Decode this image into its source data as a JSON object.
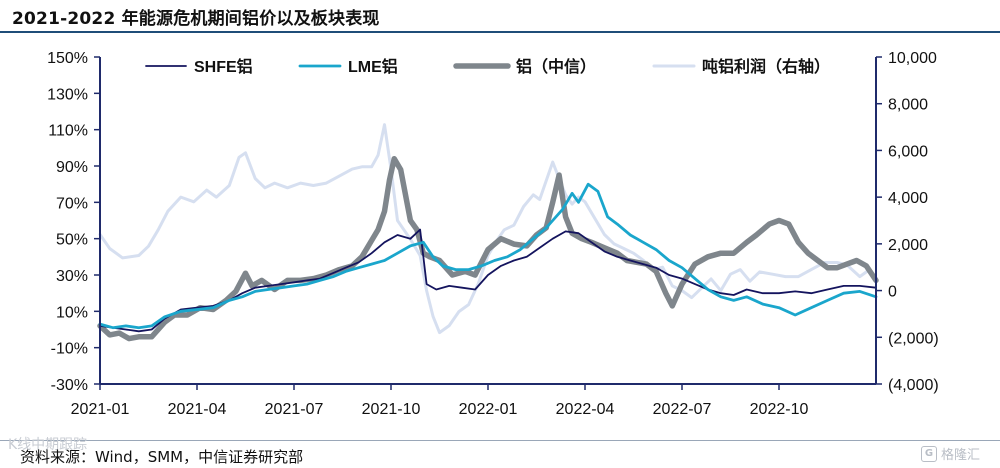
{
  "header": {
    "title": "2021-2022 年能源危机期间铝价以及板块表现"
  },
  "footer": {
    "source": "资料来源：Wind，SMM，中信证券研究部",
    "watermark_left": "K线中期跟踪",
    "watermark_right": "格隆汇",
    "watermark_icon": "G"
  },
  "chart_data": {
    "type": "line",
    "title": "2021-2022 年能源危机期间铝价以及板块表现",
    "xlabel": "",
    "ylabel": "",
    "x_tick_labels": [
      "2021-01",
      "2021-04",
      "2021-07",
      "2021-10",
      "2022-01",
      "2022-04",
      "2022-07",
      "2022-10"
    ],
    "y_left": {
      "lim": [
        -30,
        150
      ],
      "ticks": [
        -30,
        -10,
        10,
        30,
        50,
        70,
        90,
        110,
        130,
        150
      ],
      "tick_labels": [
        "-30%",
        "-10%",
        "10%",
        "30%",
        "50%",
        "70%",
        "90%",
        "110%",
        "130%",
        "150%"
      ]
    },
    "y_right": {
      "lim": [
        -4000,
        10000
      ],
      "ticks": [
        -4000,
        -2000,
        0,
        2000,
        4000,
        6000,
        8000,
        10000
      ],
      "tick_labels": [
        "(4,000)",
        "(2,000)",
        "0",
        "2,000",
        "4,000",
        "6,000",
        "8,000",
        "10,000"
      ]
    },
    "grid": false,
    "legend_position": "top",
    "x_range_months": [
      0,
      24
    ],
    "series": [
      {
        "name": "吨铝利润（右轴）",
        "axis": "right",
        "color": "#d6dff0",
        "width": 3,
        "points": [
          [
            0,
            2400
          ],
          [
            0.3,
            1800
          ],
          [
            0.7,
            1400
          ],
          [
            1.2,
            1500
          ],
          [
            1.5,
            1900
          ],
          [
            1.8,
            2600
          ],
          [
            2.1,
            3400
          ],
          [
            2.5,
            4000
          ],
          [
            2.9,
            3800
          ],
          [
            3.3,
            4300
          ],
          [
            3.6,
            4000
          ],
          [
            4.0,
            4500
          ],
          [
            4.3,
            5700
          ],
          [
            4.5,
            5900
          ],
          [
            4.8,
            4800
          ],
          [
            5.1,
            4400
          ],
          [
            5.4,
            4600
          ],
          [
            5.8,
            4400
          ],
          [
            6.2,
            4600
          ],
          [
            6.6,
            4500
          ],
          [
            7.0,
            4600
          ],
          [
            7.4,
            4900
          ],
          [
            7.8,
            5200
          ],
          [
            8.1,
            5300
          ],
          [
            8.4,
            5300
          ],
          [
            8.6,
            5800
          ],
          [
            8.8,
            7100
          ],
          [
            9.0,
            5200
          ],
          [
            9.2,
            3000
          ],
          [
            9.4,
            2600
          ],
          [
            9.6,
            2200
          ],
          [
            9.9,
            1500
          ],
          [
            10.1,
            0
          ],
          [
            10.3,
            -1100
          ],
          [
            10.5,
            -1800
          ],
          [
            10.8,
            -1500
          ],
          [
            11.1,
            -900
          ],
          [
            11.4,
            -600
          ],
          [
            11.7,
            300
          ],
          [
            12.0,
            1500
          ],
          [
            12.3,
            2200
          ],
          [
            12.5,
            2600
          ],
          [
            12.8,
            2800
          ],
          [
            13.1,
            3600
          ],
          [
            13.4,
            4100
          ],
          [
            13.6,
            3900
          ],
          [
            13.8,
            4700
          ],
          [
            14.0,
            5500
          ],
          [
            14.2,
            4800
          ],
          [
            14.4,
            4100
          ],
          [
            14.6,
            3700
          ],
          [
            14.8,
            4000
          ],
          [
            15.0,
            3800
          ],
          [
            15.3,
            3100
          ],
          [
            15.6,
            2400
          ],
          [
            15.9,
            2000
          ],
          [
            16.2,
            1800
          ],
          [
            16.5,
            1600
          ],
          [
            16.8,
            1300
          ],
          [
            17.1,
            900
          ],
          [
            17.4,
            1000
          ],
          [
            17.7,
            200
          ],
          [
            18.0,
            0
          ],
          [
            18.3,
            -300
          ],
          [
            18.6,
            100
          ],
          [
            18.9,
            500
          ],
          [
            19.2,
            0
          ],
          [
            19.5,
            700
          ],
          [
            19.8,
            900
          ],
          [
            20.1,
            400
          ],
          [
            20.4,
            800
          ],
          [
            20.8,
            700
          ],
          [
            21.2,
            600
          ],
          [
            21.6,
            600
          ],
          [
            22.0,
            900
          ],
          [
            22.4,
            1200
          ],
          [
            22.8,
            1200
          ],
          [
            23.1,
            1100
          ],
          [
            23.5,
            600
          ],
          [
            23.8,
            900
          ]
        ]
      },
      {
        "name": "铝（中信）",
        "axis": "left",
        "color": "#7f868c",
        "width": 5.5,
        "points": [
          [
            0,
            2
          ],
          [
            0.3,
            -3
          ],
          [
            0.6,
            -2
          ],
          [
            0.9,
            -5
          ],
          [
            1.2,
            -4
          ],
          [
            1.6,
            -4
          ],
          [
            2.0,
            4
          ],
          [
            2.3,
            8
          ],
          [
            2.7,
            8
          ],
          [
            3.1,
            12
          ],
          [
            3.5,
            11
          ],
          [
            3.9,
            16
          ],
          [
            4.2,
            21
          ],
          [
            4.5,
            31
          ],
          [
            4.7,
            24
          ],
          [
            5.0,
            27
          ],
          [
            5.4,
            22
          ],
          [
            5.8,
            27
          ],
          [
            6.2,
            27
          ],
          [
            6.6,
            28
          ],
          [
            7.0,
            30
          ],
          [
            7.4,
            33
          ],
          [
            7.8,
            35
          ],
          [
            8.1,
            40
          ],
          [
            8.4,
            49
          ],
          [
            8.6,
            55
          ],
          [
            8.8,
            65
          ],
          [
            8.95,
            82
          ],
          [
            9.1,
            94
          ],
          [
            9.3,
            88
          ],
          [
            9.6,
            60
          ],
          [
            9.8,
            55
          ],
          [
            10.0,
            42
          ],
          [
            10.2,
            40
          ],
          [
            10.5,
            38
          ],
          [
            10.9,
            30
          ],
          [
            11.3,
            32
          ],
          [
            11.6,
            30
          ],
          [
            12.0,
            44
          ],
          [
            12.4,
            50
          ],
          [
            12.8,
            47
          ],
          [
            13.2,
            46
          ],
          [
            13.5,
            52
          ],
          [
            13.8,
            56
          ],
          [
            14.0,
            70
          ],
          [
            14.2,
            85
          ],
          [
            14.4,
            62
          ],
          [
            14.6,
            53
          ],
          [
            14.9,
            50
          ],
          [
            15.2,
            48
          ],
          [
            15.6,
            45
          ],
          [
            16.0,
            42
          ],
          [
            16.3,
            38
          ],
          [
            16.6,
            37
          ],
          [
            16.9,
            36
          ],
          [
            17.2,
            32
          ],
          [
            17.5,
            20
          ],
          [
            17.7,
            13
          ],
          [
            18.0,
            25
          ],
          [
            18.4,
            36
          ],
          [
            18.8,
            40
          ],
          [
            19.2,
            42
          ],
          [
            19.6,
            42
          ],
          [
            20.0,
            48
          ],
          [
            20.3,
            52
          ],
          [
            20.7,
            58
          ],
          [
            21.0,
            60
          ],
          [
            21.3,
            58
          ],
          [
            21.6,
            48
          ],
          [
            21.9,
            42
          ],
          [
            22.2,
            38
          ],
          [
            22.5,
            34
          ],
          [
            22.8,
            34
          ],
          [
            23.1,
            36
          ],
          [
            23.4,
            38
          ],
          [
            23.7,
            35
          ],
          [
            24.0,
            27
          ]
        ]
      },
      {
        "name": "SHFE铝",
        "axis": "left",
        "color": "#14145e",
        "width": 1.8,
        "points": [
          [
            0,
            2
          ],
          [
            0.4,
            1
          ],
          [
            0.8,
            0
          ],
          [
            1.2,
            -1
          ],
          [
            1.6,
            0
          ],
          [
            2.0,
            6
          ],
          [
            2.5,
            11
          ],
          [
            3.0,
            12
          ],
          [
            3.5,
            13
          ],
          [
            4.0,
            16
          ],
          [
            4.4,
            20
          ],
          [
            4.8,
            23
          ],
          [
            5.2,
            24
          ],
          [
            5.6,
            25
          ],
          [
            6.0,
            26
          ],
          [
            6.4,
            27
          ],
          [
            6.8,
            28
          ],
          [
            7.2,
            31
          ],
          [
            7.6,
            34
          ],
          [
            8.0,
            37
          ],
          [
            8.4,
            42
          ],
          [
            8.8,
            48
          ],
          [
            9.2,
            52
          ],
          [
            9.6,
            50
          ],
          [
            9.9,
            55
          ],
          [
            10.1,
            25
          ],
          [
            10.4,
            22
          ],
          [
            10.8,
            24
          ],
          [
            11.2,
            23
          ],
          [
            11.6,
            22
          ],
          [
            12.0,
            30
          ],
          [
            12.4,
            35
          ],
          [
            12.8,
            38
          ],
          [
            13.2,
            40
          ],
          [
            13.6,
            45
          ],
          [
            14.0,
            50
          ],
          [
            14.4,
            54
          ],
          [
            14.8,
            53
          ],
          [
            15.2,
            48
          ],
          [
            15.6,
            43
          ],
          [
            16.0,
            40
          ],
          [
            16.4,
            38
          ],
          [
            16.8,
            36
          ],
          [
            17.2,
            34
          ],
          [
            17.6,
            30
          ],
          [
            18.0,
            28
          ],
          [
            18.4,
            25
          ],
          [
            18.8,
            22
          ],
          [
            19.2,
            20
          ],
          [
            19.6,
            19
          ],
          [
            20.0,
            22
          ],
          [
            20.5,
            20
          ],
          [
            21.0,
            20
          ],
          [
            21.5,
            21
          ],
          [
            22.0,
            20
          ],
          [
            22.5,
            22
          ],
          [
            23.0,
            24
          ],
          [
            23.5,
            24
          ],
          [
            24.0,
            23
          ]
        ]
      },
      {
        "name": "LME铝",
        "axis": "left",
        "color": "#1aa6cc",
        "width": 2.8,
        "points": [
          [
            0,
            3
          ],
          [
            0.4,
            1
          ],
          [
            0.8,
            2
          ],
          [
            1.2,
            1
          ],
          [
            1.6,
            2
          ],
          [
            2.0,
            7
          ],
          [
            2.5,
            10
          ],
          [
            3.0,
            11
          ],
          [
            3.5,
            12
          ],
          [
            4.0,
            16
          ],
          [
            4.4,
            18
          ],
          [
            4.8,
            21
          ],
          [
            5.2,
            22
          ],
          [
            5.6,
            23
          ],
          [
            6.0,
            24
          ],
          [
            6.4,
            25
          ],
          [
            6.8,
            27
          ],
          [
            7.2,
            29
          ],
          [
            7.6,
            32
          ],
          [
            8.0,
            34
          ],
          [
            8.4,
            36
          ],
          [
            8.8,
            38
          ],
          [
            9.2,
            42
          ],
          [
            9.6,
            46
          ],
          [
            10.0,
            48
          ],
          [
            10.3,
            40
          ],
          [
            10.6,
            35
          ],
          [
            11.0,
            33
          ],
          [
            11.4,
            33
          ],
          [
            11.8,
            35
          ],
          [
            12.2,
            38
          ],
          [
            12.6,
            40
          ],
          [
            13.0,
            44
          ],
          [
            13.4,
            50
          ],
          [
            13.8,
            56
          ],
          [
            14.0,
            60
          ],
          [
            14.3,
            66
          ],
          [
            14.6,
            75
          ],
          [
            14.8,
            70
          ],
          [
            15.1,
            80
          ],
          [
            15.4,
            76
          ],
          [
            15.7,
            62
          ],
          [
            16.0,
            58
          ],
          [
            16.4,
            52
          ],
          [
            16.8,
            48
          ],
          [
            17.2,
            44
          ],
          [
            17.6,
            38
          ],
          [
            18.0,
            34
          ],
          [
            18.4,
            28
          ],
          [
            18.8,
            22
          ],
          [
            19.2,
            18
          ],
          [
            19.6,
            16
          ],
          [
            20.0,
            18
          ],
          [
            20.5,
            14
          ],
          [
            21.0,
            12
          ],
          [
            21.5,
            8
          ],
          [
            22.0,
            12
          ],
          [
            22.5,
            16
          ],
          [
            23.0,
            20
          ],
          [
            23.5,
            21
          ],
          [
            24.0,
            18
          ]
        ]
      }
    ]
  }
}
